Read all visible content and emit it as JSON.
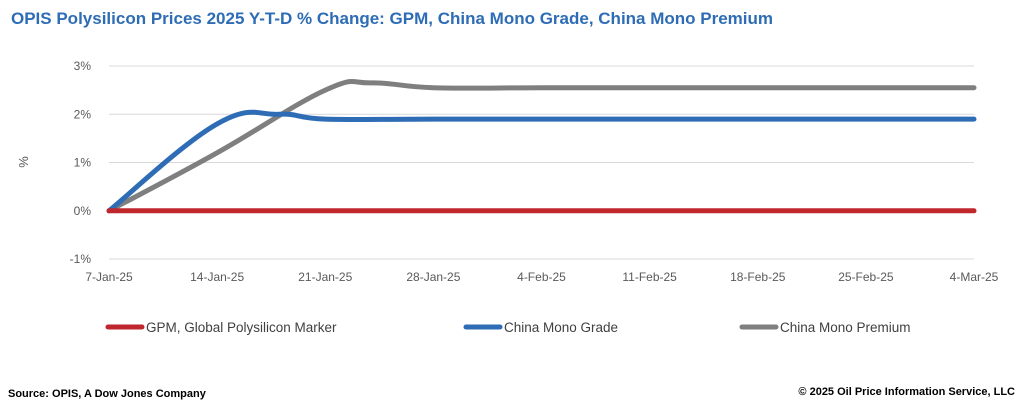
{
  "chart_data": {
    "type": "line",
    "title": "OPIS Polysilicon Prices 2025 Y-T-D % Change: GPM, China Mono Grade, China Mono Premium",
    "xlabel": "",
    "ylabel": "%",
    "x_tick_labels": [
      "7-Jan-25",
      "14-Jan-25",
      "21-Jan-25",
      "28-Jan-25",
      "4-Feb-25",
      "11-Feb-25",
      "18-Feb-25",
      "25-Feb-25",
      "4-Mar-25"
    ],
    "y_tick_labels": [
      "3%",
      "2%",
      "1%",
      "0%",
      "-1%"
    ],
    "y_ticks": [
      3,
      2,
      1,
      0,
      -1
    ],
    "ylim": [
      -1,
      3
    ],
    "xlim": [
      "7-Jan-25",
      "4-Mar-25"
    ],
    "grid": true,
    "legend_position": "bottom",
    "series": [
      {
        "name": "GPM, Global Polysilicon Marker",
        "color": "#c0272d",
        "x": [
          "7-Jan-25",
          "14-Jan-25",
          "21-Jan-25",
          "28-Jan-25",
          "4-Feb-25",
          "11-Feb-25",
          "18-Feb-25",
          "25-Feb-25",
          "4-Mar-25"
        ],
        "values": [
          0,
          0,
          0,
          0,
          0,
          0,
          0,
          0,
          0
        ]
      },
      {
        "name": "China Mono Grade",
        "color": "#2e6db5",
        "x": [
          "7-Jan-25",
          "14-Jan-25",
          "18-Jan-25",
          "21-Jan-25",
          "28-Jan-25",
          "4-Feb-25",
          "11-Feb-25",
          "18-Feb-25",
          "25-Feb-25",
          "4-Mar-25"
        ],
        "values": [
          0,
          1.8,
          2.0,
          1.9,
          1.9,
          1.9,
          1.9,
          1.9,
          1.9,
          1.9
        ]
      },
      {
        "name": "China Mono Premium",
        "color": "#7f7f7f",
        "x": [
          "7-Jan-25",
          "14-Jan-25",
          "21-Jan-25",
          "24-Jan-25",
          "28-Jan-25",
          "4-Feb-25",
          "11-Feb-25",
          "18-Feb-25",
          "25-Feb-25",
          "4-Mar-25"
        ],
        "values": [
          0,
          1.2,
          2.5,
          2.65,
          2.55,
          2.55,
          2.55,
          2.55,
          2.55,
          2.55
        ]
      }
    ]
  },
  "footer": {
    "source": "Source: OPIS, A Dow Jones Company",
    "copyright": "© 2025 Oil Price Information Service, LLC"
  }
}
